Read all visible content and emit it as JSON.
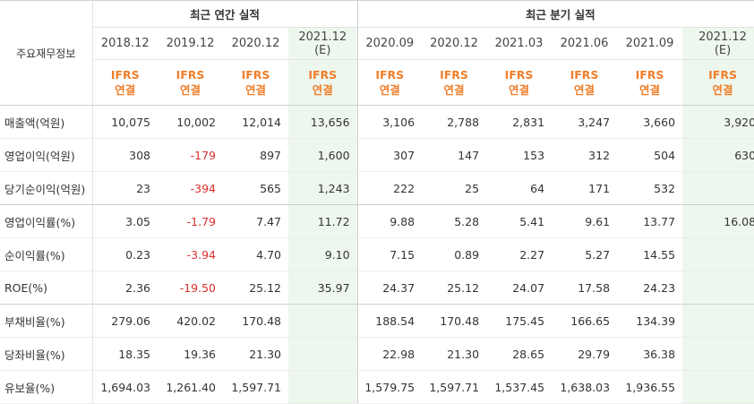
{
  "header": {
    "row_label": "주요재무정보",
    "annual_group": "최근 연간 실적",
    "quarter_group": "최근 분기 실적"
  },
  "periods": [
    {
      "label": "2018.12",
      "est": "",
      "standard": "IFRS",
      "basis": "연결"
    },
    {
      "label": "2019.12",
      "est": "",
      "standard": "IFRS",
      "basis": "연결"
    },
    {
      "label": "2020.12",
      "est": "",
      "standard": "IFRS",
      "basis": "연결"
    },
    {
      "label": "2021.12",
      "est": "(E)",
      "standard": "IFRS",
      "basis": "연결"
    },
    {
      "label": "2020.09",
      "est": "",
      "standard": "IFRS",
      "basis": "연결"
    },
    {
      "label": "2020.12",
      "est": "",
      "standard": "IFRS",
      "basis": "연결"
    },
    {
      "label": "2021.03",
      "est": "",
      "standard": "IFRS",
      "basis": "연결"
    },
    {
      "label": "2021.06",
      "est": "",
      "standard": "IFRS",
      "basis": "연결"
    },
    {
      "label": "2021.09",
      "est": "",
      "standard": "IFRS",
      "basis": "연결"
    },
    {
      "label": "2021.12",
      "est": "(E)",
      "standard": "IFRS",
      "basis": "연결"
    }
  ],
  "rows": [
    {
      "label": "매출액(억원)",
      "values": [
        "10,075",
        "10,002",
        "12,014",
        "13,656",
        "3,106",
        "2,788",
        "2,831",
        "3,247",
        "3,660",
        "3,920"
      ]
    },
    {
      "label": "영업이익(억원)",
      "values": [
        "308",
        "-179",
        "897",
        "1,600",
        "307",
        "147",
        "153",
        "312",
        "504",
        "630"
      ]
    },
    {
      "label": "당기순이익(억원)",
      "values": [
        "23",
        "-394",
        "565",
        "1,243",
        "222",
        "25",
        "64",
        "171",
        "532",
        ""
      ]
    },
    {
      "label": "영업이익률(%)",
      "values": [
        "3.05",
        "-1.79",
        "7.47",
        "11.72",
        "9.88",
        "5.28",
        "5.41",
        "9.61",
        "13.77",
        "16.08"
      ]
    },
    {
      "label": "순이익률(%)",
      "values": [
        "0.23",
        "-3.94",
        "4.70",
        "9.10",
        "7.15",
        "0.89",
        "2.27",
        "5.27",
        "14.55",
        ""
      ]
    },
    {
      "label": "ROE(%)",
      "values": [
        "2.36",
        "-19.50",
        "25.12",
        "35.97",
        "24.37",
        "25.12",
        "24.07",
        "17.58",
        "24.23",
        ""
      ]
    },
    {
      "label": "부채비율(%)",
      "values": [
        "279.06",
        "420.02",
        "170.48",
        "",
        "188.54",
        "170.48",
        "175.45",
        "166.65",
        "134.39",
        ""
      ]
    },
    {
      "label": "당좌비율(%)",
      "values": [
        "18.35",
        "19.36",
        "21.30",
        "",
        "22.98",
        "21.30",
        "28.65",
        "29.79",
        "36.38",
        ""
      ]
    },
    {
      "label": "유보율(%)",
      "values": [
        "1,694.03",
        "1,261.40",
        "1,597.71",
        "",
        "1,579.75",
        "1,597.71",
        "1,537.45",
        "1,638.03",
        "1,936.55",
        ""
      ]
    }
  ],
  "colors": {
    "accent": "#f07e2a",
    "negative": "#d8302c",
    "estimate_bg": "#eef7ee"
  }
}
